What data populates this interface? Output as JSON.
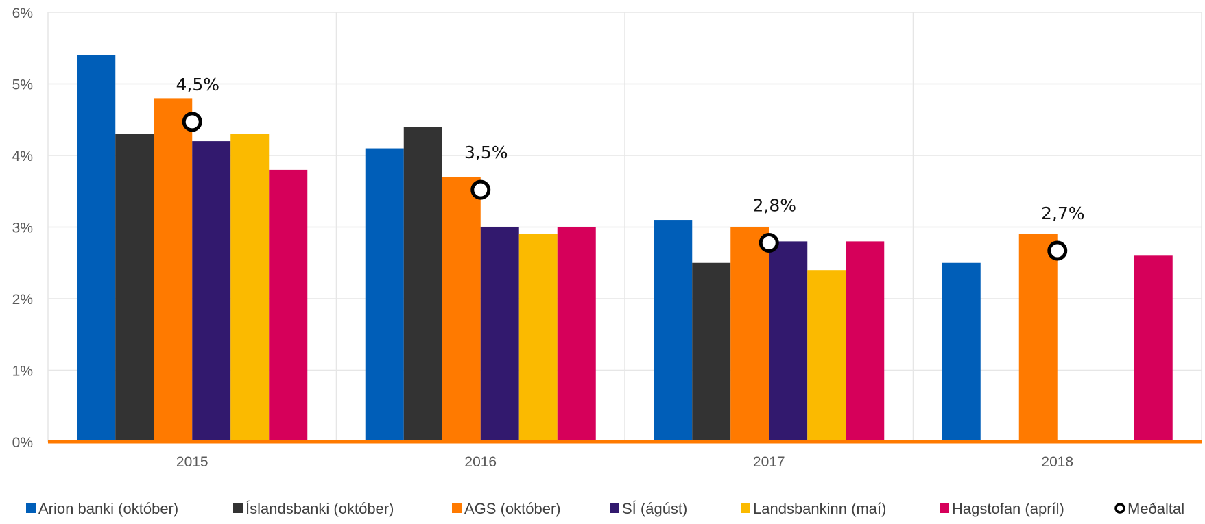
{
  "chart_data": {
    "type": "bar",
    "categories": [
      "2015",
      "2016",
      "2017",
      "2018"
    ],
    "ylim": [
      0,
      6
    ],
    "y_ticks": [
      0,
      1,
      2,
      3,
      4,
      5,
      6
    ],
    "y_tick_labels": [
      "0%",
      "1%",
      "2%",
      "3%",
      "4%",
      "5%",
      "6%"
    ],
    "grid": true,
    "legend_position": "bottom",
    "series": [
      {
        "name": "Arion banki (október)",
        "color": "#005EB8",
        "values": [
          5.4,
          4.1,
          3.1,
          2.5
        ]
      },
      {
        "name": "Íslandsbanki (október)",
        "color": "#333333",
        "values": [
          4.3,
          4.4,
          2.5,
          null
        ]
      },
      {
        "name": "AGS (október)",
        "color": "#FF7A00",
        "values": [
          4.8,
          3.7,
          3.0,
          2.9
        ]
      },
      {
        "name": "SÍ (ágúst)",
        "color": "#32196E",
        "values": [
          4.2,
          3.0,
          2.8,
          null
        ]
      },
      {
        "name": "Landsbankinn (maí)",
        "color": "#FBBA00",
        "values": [
          4.3,
          2.9,
          2.4,
          null
        ]
      },
      {
        "name": "Hagstofan (apríl)",
        "color": "#D6005A",
        "values": [
          3.8,
          3.0,
          2.8,
          2.6
        ]
      }
    ],
    "average": {
      "name": "Meðaltal",
      "type": "scatter",
      "values": [
        4.47,
        3.52,
        2.78,
        2.67
      ],
      "labels": [
        "4,5%",
        "3,5%",
        "2,8%",
        "2,7%"
      ]
    },
    "baseline_color": "#FF7A00",
    "grid_color": "#E6E6E6"
  }
}
